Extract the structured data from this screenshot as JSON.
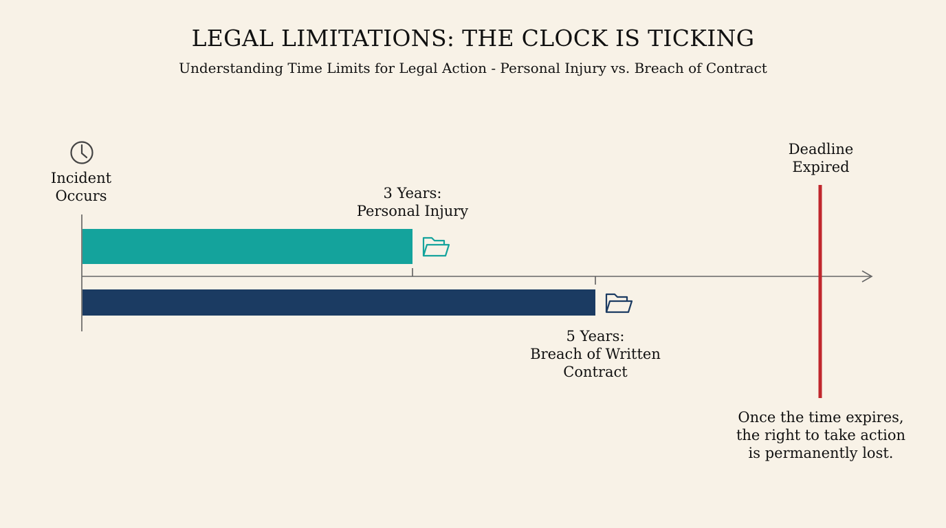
{
  "header": {
    "title": "LEGAL LIMITATIONS: THE CLOCK IS TICKING",
    "subtitle": "Understanding Time Limits for Legal Action - Personal Injury vs. Breach of Contract"
  },
  "timeline": {
    "start": {
      "icon": "clock-icon",
      "label_lines": [
        "Incident",
        "Occurs"
      ]
    },
    "periods": [
      {
        "years": 3,
        "label_lines": [
          "3 Years:",
          "Personal Injury"
        ],
        "color": "#14a39c",
        "icon": "folder-icon"
      },
      {
        "years": 5,
        "label_lines": [
          "5 Years:",
          "Breach of Written",
          "Contract"
        ],
        "color": "#1b3b62",
        "icon": "folder-icon"
      }
    ],
    "deadline": {
      "label_lines": [
        "Deadline",
        "Expired"
      ],
      "color": "#c0272d",
      "note_lines": [
        "Once the time expires,",
        "the right to take action",
        "is permanently lost."
      ]
    }
  },
  "colors": {
    "background": "#f8f2e7",
    "axis": "#666666"
  }
}
